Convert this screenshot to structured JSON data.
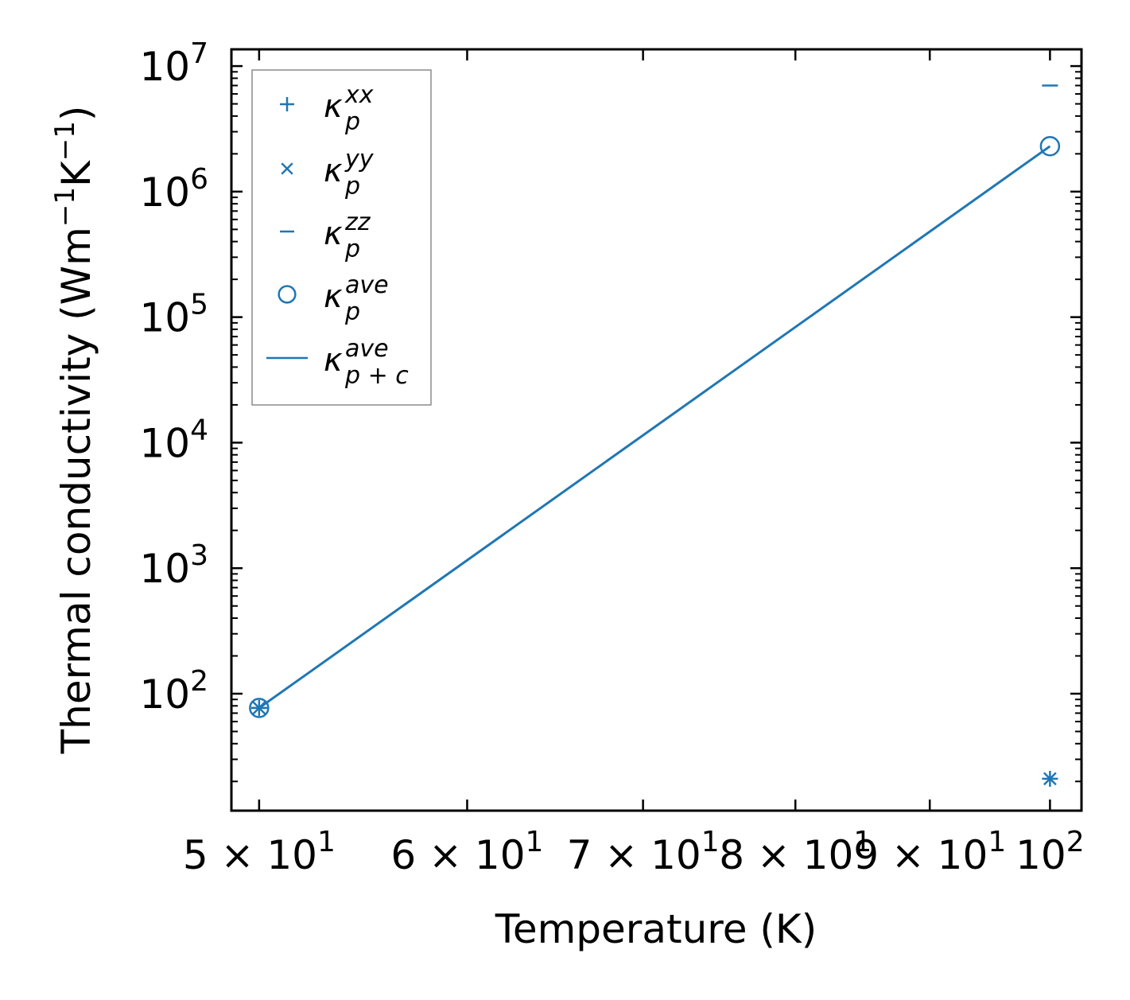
{
  "chart_data": {
    "type": "line",
    "xscale": "log",
    "yscale": "log",
    "xlabel": "Temperature (K)",
    "ylabel": {
      "prefix": "Thermal conductivity (Wm",
      "exp1": "−1",
      "mid": "K",
      "exp2": "−1",
      "suffix": ")"
    },
    "xlim": [
      48.8,
      102.8
    ],
    "ylim": [
      11.7,
      13600000
    ],
    "x_ticks": [
      {
        "value": 50,
        "mant": "5 × 10",
        "exp": "1"
      },
      {
        "value": 60,
        "mant": "6 × 10",
        "exp": "1"
      },
      {
        "value": 70,
        "mant": "7 × 10",
        "exp": "1"
      },
      {
        "value": 80,
        "mant": "8 × 10",
        "exp": "1"
      },
      {
        "value": 90,
        "mant": "9 × 10",
        "exp": "1"
      },
      {
        "value": 100,
        "mant": "10",
        "exp": "2"
      }
    ],
    "y_ticks": [
      {
        "value": 100,
        "base": "10",
        "exp": "2"
      },
      {
        "value": 1000,
        "base": "10",
        "exp": "3"
      },
      {
        "value": 10000,
        "base": "10",
        "exp": "4"
      },
      {
        "value": 100000,
        "base": "10",
        "exp": "5"
      },
      {
        "value": 1000000,
        "base": "10",
        "exp": "6"
      },
      {
        "value": 10000000,
        "base": "10",
        "exp": "7"
      }
    ],
    "color": "#1f77b4",
    "series": [
      {
        "id": "kxx",
        "marker": "plus",
        "legend": {
          "base": "κ",
          "sup": "xx",
          "sub": "p"
        },
        "points": [
          {
            "x": 50,
            "y": 77
          },
          {
            "x": 100,
            "y": 21
          }
        ]
      },
      {
        "id": "kyy",
        "marker": "x",
        "legend": {
          "base": "κ",
          "sup": "yy",
          "sub": "p"
        },
        "points": [
          {
            "x": 50,
            "y": 77
          },
          {
            "x": 100,
            "y": 21
          }
        ]
      },
      {
        "id": "kzz",
        "marker": "hline",
        "legend": {
          "base": "κ",
          "sup": "zz",
          "sub": "p"
        },
        "points": [
          {
            "x": 50,
            "y": 77
          },
          {
            "x": 100,
            "y": 7000000
          }
        ]
      },
      {
        "id": "kave",
        "marker": "circle",
        "legend": {
          "base": "κ",
          "sup": "ave",
          "sub": "p"
        },
        "points": [
          {
            "x": 50,
            "y": 77
          },
          {
            "x": 100,
            "y": 2300000
          }
        ]
      },
      {
        "id": "kpc",
        "marker": "line",
        "legend": {
          "base": "κ",
          "sup": "ave",
          "sub": "p + c"
        },
        "points": [
          {
            "x": 50,
            "y": 77
          },
          {
            "x": 100,
            "y": 2300000
          }
        ]
      }
    ],
    "legend_position": "top-left",
    "grid": false,
    "ticks_direction": "in"
  }
}
